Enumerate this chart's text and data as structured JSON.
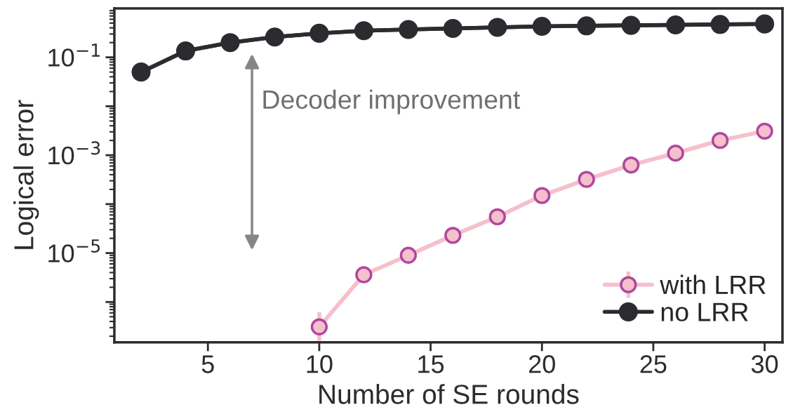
{
  "chart_data": {
    "type": "line",
    "xlabel": "Number of SE rounds",
    "ylabel": "Logical error",
    "log": "y",
    "xlim": [
      0.8,
      30.8
    ],
    "xticks": [
      5,
      10,
      15,
      20,
      25,
      30
    ],
    "ylim": [
      1.5e-07,
      1
    ],
    "yticks": [
      {
        "value": 1e-06,
        "label": null
      },
      {
        "value": 1e-05,
        "label": "10$^{−5}$"
      },
      {
        "value": 0.0001,
        "label": null
      },
      {
        "value": 0.001,
        "label": "10$^{−3}$"
      },
      {
        "value": 0.01,
        "label": null
      },
      {
        "value": 0.1,
        "label": "10$^{−1}$"
      }
    ],
    "marker": "circle",
    "legend": "bottom right",
    "grid": false,
    "annotations": [
      "Decoder improvement"
    ],
    "series": [
      {
        "name": "with LRR",
        "color": "#f5c0cc",
        "x": [
          10,
          12,
          14,
          16,
          18,
          20,
          22,
          24,
          26,
          28,
          30
        ],
        "values": [
          3.1e-07,
          3.6e-06,
          9e-06,
          2.3e-05,
          5.5e-05,
          0.00015,
          0.00032,
          0.00063,
          0.0011,
          0.002,
          0.0031
        ],
        "errors": [
          [
            1.6e-07,
            6.2e-07
          ],
          null,
          null,
          null,
          null,
          null,
          null,
          null,
          null,
          null,
          null
        ]
      },
      {
        "name": "no LRR",
        "color": "#2b2b30",
        "x": [
          2,
          4,
          6,
          8,
          10,
          12,
          14,
          16,
          18,
          20,
          22,
          24,
          26,
          28,
          30
        ],
        "values": [
          0.05,
          0.135,
          0.2,
          0.26,
          0.31,
          0.35,
          0.37,
          0.39,
          0.41,
          0.43,
          0.44,
          0.45,
          0.46,
          0.47,
          0.48
        ]
      }
    ]
  }
}
